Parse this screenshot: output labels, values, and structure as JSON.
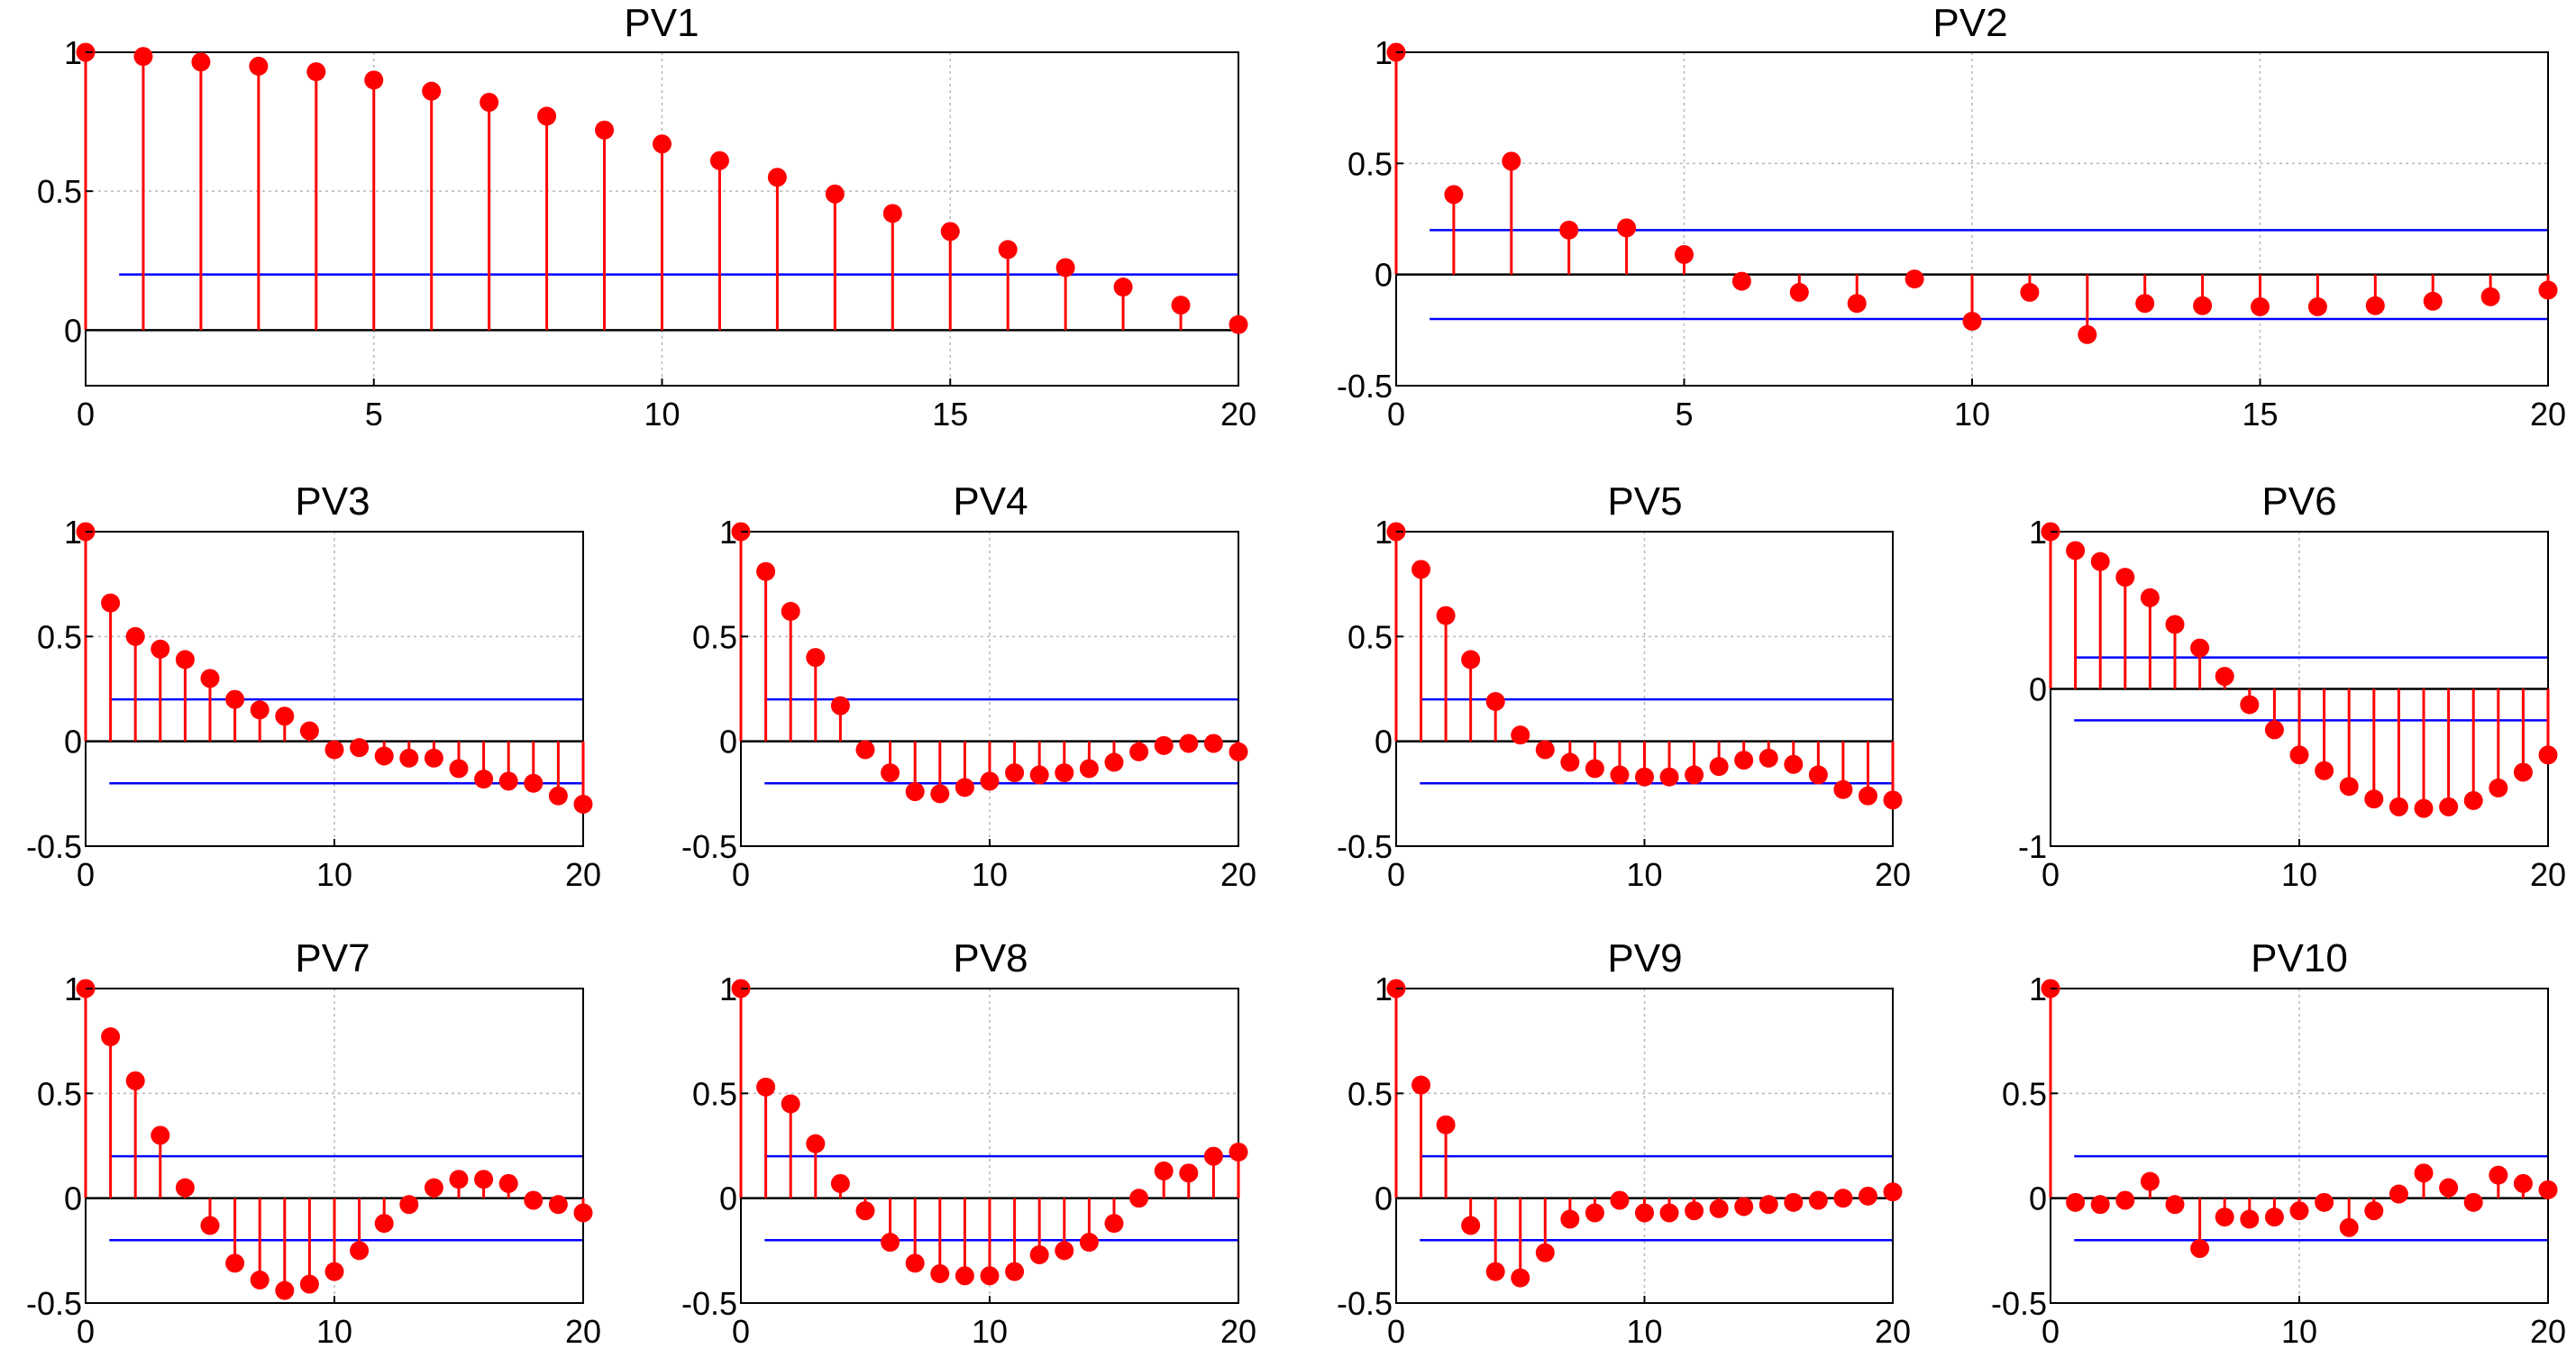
{
  "colors": {
    "marker": "#ff0000",
    "confidence": "#0000ff",
    "axis": "#000000",
    "grid": "#b8b8b8"
  },
  "chart_data": [
    {
      "title": "PV1",
      "type": "stem",
      "x": [
        0,
        1,
        2,
        3,
        4,
        5,
        6,
        7,
        8,
        9,
        10,
        11,
        12,
        13,
        14,
        15,
        16,
        17,
        18,
        19,
        20
      ],
      "values": [
        1.0,
        0.985,
        0.965,
        0.95,
        0.93,
        0.9,
        0.86,
        0.82,
        0.77,
        0.72,
        0.67,
        0.61,
        0.55,
        0.49,
        0.42,
        0.355,
        0.29,
        0.225,
        0.155,
        0.09,
        0.02
      ],
      "confidence": [
        0.2
      ],
      "xlim": [
        0,
        20
      ],
      "ylim": [
        -0.2,
        1
      ],
      "xticks": [
        0,
        5,
        10,
        15,
        20
      ],
      "xtick_labels": [
        "0",
        "5",
        "10",
        "15",
        "20"
      ],
      "yticks": [
        0,
        0.5,
        1
      ],
      "ytick_labels": [
        "0",
        "0.5",
        "1"
      ],
      "grid": true
    },
    {
      "title": "PV2",
      "type": "stem",
      "x": [
        0,
        1,
        2,
        3,
        4,
        5,
        6,
        7,
        8,
        9,
        10,
        11,
        12,
        13,
        14,
        15,
        16,
        17,
        18,
        19,
        20
      ],
      "values": [
        1.0,
        0.36,
        0.51,
        0.2,
        0.21,
        0.09,
        -0.03,
        -0.08,
        -0.13,
        -0.02,
        -0.21,
        -0.08,
        -0.27,
        -0.13,
        -0.14,
        -0.145,
        -0.145,
        -0.14,
        -0.12,
        -0.1,
        -0.07
      ],
      "confidence": [
        0.2,
        -0.2
      ],
      "xlim": [
        0,
        20
      ],
      "ylim": [
        -0.5,
        1
      ],
      "xticks": [
        0,
        5,
        10,
        15,
        20
      ],
      "xtick_labels": [
        "0",
        "5",
        "10",
        "15",
        "20"
      ],
      "yticks": [
        -0.5,
        0,
        0.5,
        1
      ],
      "ytick_labels": [
        "-0.5",
        "0",
        "0.5",
        "1"
      ],
      "grid": true
    },
    {
      "title": "PV3",
      "type": "stem",
      "x": [
        0,
        1,
        2,
        3,
        4,
        5,
        6,
        7,
        8,
        9,
        10,
        11,
        12,
        13,
        14,
        15,
        16,
        17,
        18,
        19,
        20
      ],
      "values": [
        1.0,
        0.66,
        0.5,
        0.44,
        0.39,
        0.3,
        0.2,
        0.15,
        0.12,
        0.05,
        -0.04,
        -0.03,
        -0.07,
        -0.08,
        -0.08,
        -0.13,
        -0.18,
        -0.19,
        -0.2,
        -0.26,
        -0.3
      ],
      "confidence": [
        0.2,
        -0.2
      ],
      "xlim": [
        0,
        20
      ],
      "ylim": [
        -0.5,
        1
      ],
      "xticks": [
        0,
        10,
        20
      ],
      "xtick_labels": [
        "0",
        "10",
        "20"
      ],
      "yticks": [
        -0.5,
        0,
        0.5,
        1
      ],
      "ytick_labels": [
        "-0.5",
        "0",
        "0.5",
        "1"
      ],
      "grid": true
    },
    {
      "title": "PV4",
      "type": "stem",
      "x": [
        0,
        1,
        2,
        3,
        4,
        5,
        6,
        7,
        8,
        9,
        10,
        11,
        12,
        13,
        14,
        15,
        16,
        17,
        18,
        19,
        20
      ],
      "values": [
        1.0,
        0.81,
        0.62,
        0.4,
        0.17,
        -0.04,
        -0.15,
        -0.24,
        -0.25,
        -0.22,
        -0.19,
        -0.15,
        -0.16,
        -0.15,
        -0.13,
        -0.1,
        -0.05,
        -0.02,
        -0.01,
        -0.01,
        -0.05
      ],
      "confidence": [
        0.2,
        -0.2
      ],
      "xlim": [
        0,
        20
      ],
      "ylim": [
        -0.5,
        1
      ],
      "xticks": [
        0,
        10,
        20
      ],
      "xtick_labels": [
        "0",
        "10",
        "20"
      ],
      "yticks": [
        -0.5,
        0,
        0.5,
        1
      ],
      "ytick_labels": [
        "-0.5",
        "0",
        "0.5",
        "1"
      ],
      "grid": true
    },
    {
      "title": "PV5",
      "type": "stem",
      "x": [
        0,
        1,
        2,
        3,
        4,
        5,
        6,
        7,
        8,
        9,
        10,
        11,
        12,
        13,
        14,
        15,
        16,
        17,
        18,
        19,
        20
      ],
      "values": [
        1.0,
        0.82,
        0.6,
        0.39,
        0.19,
        0.03,
        -0.04,
        -0.1,
        -0.13,
        -0.16,
        -0.17,
        -0.17,
        -0.16,
        -0.12,
        -0.09,
        -0.08,
        -0.11,
        -0.16,
        -0.23,
        -0.26,
        -0.28
      ],
      "confidence": [
        0.2,
        -0.2
      ],
      "xlim": [
        0,
        20
      ],
      "ylim": [
        -0.5,
        1
      ],
      "xticks": [
        0,
        10,
        20
      ],
      "xtick_labels": [
        "0",
        "10",
        "20"
      ],
      "yticks": [
        -0.5,
        0,
        0.5,
        1
      ],
      "ytick_labels": [
        "-0.5",
        "0",
        "0.5",
        "1"
      ],
      "grid": true
    },
    {
      "title": "PV6",
      "type": "stem",
      "x": [
        0,
        1,
        2,
        3,
        4,
        5,
        6,
        7,
        8,
        9,
        10,
        11,
        12,
        13,
        14,
        15,
        16,
        17,
        18,
        19,
        20
      ],
      "values": [
        1.0,
        0.88,
        0.81,
        0.71,
        0.58,
        0.41,
        0.26,
        0.08,
        -0.1,
        -0.26,
        -0.42,
        -0.52,
        -0.62,
        -0.7,
        -0.75,
        -0.76,
        -0.75,
        -0.71,
        -0.63,
        -0.53,
        -0.42
      ],
      "confidence": [
        0.2,
        -0.2
      ],
      "xlim": [
        0,
        20
      ],
      "ylim": [
        -1,
        1
      ],
      "xticks": [
        0,
        10,
        20
      ],
      "xtick_labels": [
        "0",
        "10",
        "20"
      ],
      "yticks": [
        -1,
        0,
        1
      ],
      "ytick_labels": [
        "-1",
        "0",
        "1"
      ],
      "grid": true
    },
    {
      "title": "PV7",
      "type": "stem",
      "x": [
        0,
        1,
        2,
        3,
        4,
        5,
        6,
        7,
        8,
        9,
        10,
        11,
        12,
        13,
        14,
        15,
        16,
        17,
        18,
        19,
        20
      ],
      "values": [
        1.0,
        0.77,
        0.56,
        0.3,
        0.05,
        -0.13,
        -0.31,
        -0.39,
        -0.44,
        -0.41,
        -0.35,
        -0.25,
        -0.12,
        -0.03,
        0.05,
        0.09,
        0.09,
        0.07,
        -0.01,
        -0.03,
        -0.07
      ],
      "confidence": [
        0.2,
        -0.2
      ],
      "xlim": [
        0,
        20
      ],
      "ylim": [
        -0.5,
        1
      ],
      "xticks": [
        0,
        10,
        20
      ],
      "xtick_labels": [
        "0",
        "10",
        "20"
      ],
      "yticks": [
        -0.5,
        0,
        0.5,
        1
      ],
      "ytick_labels": [
        "-0.5",
        "0",
        "0.5",
        "1"
      ],
      "grid": true
    },
    {
      "title": "PV8",
      "type": "stem",
      "x": [
        0,
        1,
        2,
        3,
        4,
        5,
        6,
        7,
        8,
        9,
        10,
        11,
        12,
        13,
        14,
        15,
        16,
        17,
        18,
        19,
        20
      ],
      "values": [
        1.0,
        0.53,
        0.45,
        0.26,
        0.07,
        -0.06,
        -0.21,
        -0.31,
        -0.36,
        -0.37,
        -0.37,
        -0.35,
        -0.27,
        -0.25,
        -0.21,
        -0.12,
        0.0,
        0.13,
        0.12,
        0.2,
        0.22
      ],
      "confidence": [
        0.2,
        -0.2
      ],
      "xlim": [
        0,
        20
      ],
      "ylim": [
        -0.5,
        1
      ],
      "xticks": [
        0,
        10,
        20
      ],
      "xtick_labels": [
        "0",
        "10",
        "20"
      ],
      "yticks": [
        -0.5,
        0,
        0.5,
        1
      ],
      "ytick_labels": [
        "-0.5",
        "0",
        "0.5",
        "1"
      ],
      "grid": true
    },
    {
      "title": "PV9",
      "type": "stem",
      "x": [
        0,
        1,
        2,
        3,
        4,
        5,
        6,
        7,
        8,
        9,
        10,
        11,
        12,
        13,
        14,
        15,
        16,
        17,
        18,
        19,
        20
      ],
      "values": [
        1.0,
        0.54,
        0.35,
        -0.13,
        -0.35,
        -0.38,
        -0.26,
        -0.1,
        -0.07,
        -0.01,
        -0.07,
        -0.07,
        -0.06,
        -0.05,
        -0.04,
        -0.03,
        -0.02,
        -0.01,
        0.0,
        0.01,
        0.03
      ],
      "confidence": [
        0.2,
        -0.2
      ],
      "xlim": [
        0,
        20
      ],
      "ylim": [
        -0.5,
        1
      ],
      "xticks": [
        0,
        10,
        20
      ],
      "xtick_labels": [
        "0",
        "10",
        "20"
      ],
      "yticks": [
        -0.5,
        0,
        0.5,
        1
      ],
      "ytick_labels": [
        "-0.5",
        "0",
        "0.5",
        "1"
      ],
      "grid": true
    },
    {
      "title": "PV10",
      "type": "stem",
      "x": [
        0,
        1,
        2,
        3,
        4,
        5,
        6,
        7,
        8,
        9,
        10,
        11,
        12,
        13,
        14,
        15,
        16,
        17,
        18,
        19,
        20
      ],
      "values": [
        1.0,
        -0.02,
        -0.03,
        -0.01,
        0.08,
        -0.03,
        -0.24,
        -0.09,
        -0.1,
        -0.09,
        -0.06,
        -0.02,
        -0.14,
        -0.06,
        0.02,
        0.12,
        0.05,
        -0.02,
        0.11,
        0.07,
        0.04
      ],
      "confidence": [
        0.2,
        -0.2
      ],
      "xlim": [
        0,
        20
      ],
      "ylim": [
        -0.5,
        1
      ],
      "xticks": [
        0,
        10,
        20
      ],
      "xtick_labels": [
        "0",
        "10",
        "20"
      ],
      "yticks": [
        -0.5,
        0,
        0.5,
        1
      ],
      "ytick_labels": [
        "-0.5",
        "0",
        "0.5",
        "1"
      ],
      "grid": true
    }
  ]
}
